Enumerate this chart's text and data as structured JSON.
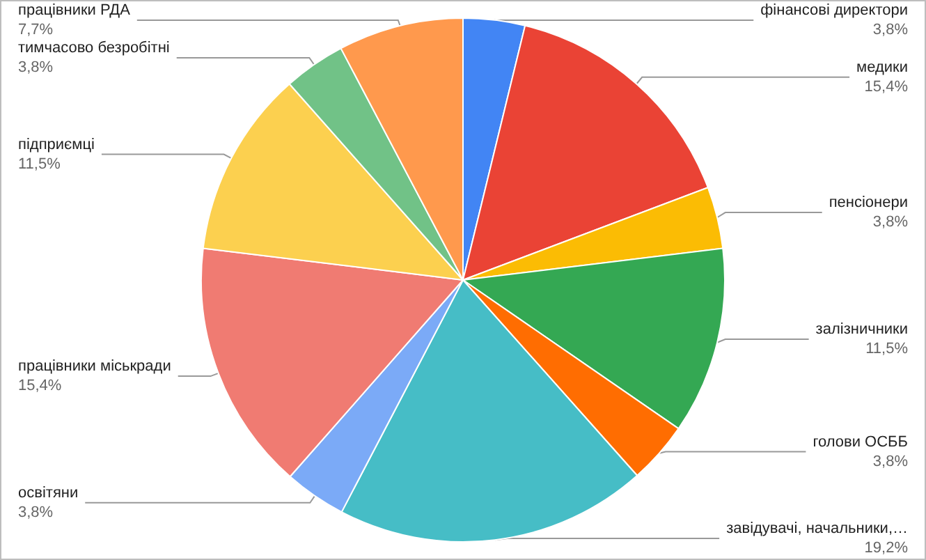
{
  "chart_data": {
    "type": "pie",
    "categories": [
      "фінансові директори",
      "медики",
      "пенсіонери",
      "залізничники",
      "голови ОСББ",
      "завідувачі, начальники,…",
      "освітяни",
      "працівники міськради",
      "підприємці",
      "тимчасово безробітні",
      "працівники РДА"
    ],
    "values": [
      3.8,
      15.4,
      3.8,
      11.5,
      3.8,
      19.2,
      3.8,
      15.4,
      11.5,
      3.8,
      7.7
    ],
    "colors": [
      "#4285f4",
      "#ea4335",
      "#fbbc04",
      "#34a853",
      "#ff6d01",
      "#46bdc6",
      "#7baaf7",
      "#f07b72",
      "#fcd04f",
      "#71c287",
      "#ff994d"
    ],
    "value_labels": [
      "3,8%",
      "15,4%",
      "3,8%",
      "11,5%",
      "3,8%",
      "19,2%",
      "3,8%",
      "15,4%",
      "11,5%",
      "3,8%",
      "7,7%"
    ],
    "legend": false
  }
}
